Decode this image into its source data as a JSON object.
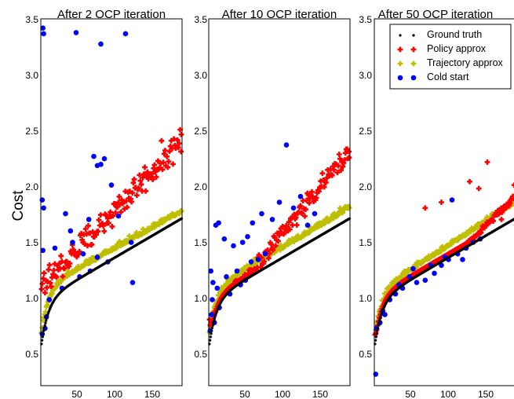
{
  "figure": {
    "ylabel": "Cost",
    "colors": {
      "ground_truth": "#000000",
      "policy": "#ff0000",
      "trajectory": "#bfbf00",
      "cold": "#0000ff"
    }
  },
  "legend": {
    "placement": "top-right of third panel",
    "entries": [
      {
        "key": "ground_truth",
        "label": "Ground truth",
        "marker": "star"
      },
      {
        "key": "policy",
        "label": "Policy approx",
        "marker": "plus"
      },
      {
        "key": "trajectory",
        "label": "Trajectory approx",
        "marker": "plus"
      },
      {
        "key": "cold",
        "label": "Cold start",
        "marker": "circle"
      }
    ]
  },
  "chart_data": [
    {
      "type": "scatter",
      "title": "After 2 OCP iteration",
      "ylabel": "Cost",
      "xlim": [
        0,
        200
      ],
      "ylim": [
        0.3,
        3.5
      ],
      "xticks": [
        "50",
        "100",
        "150"
      ],
      "yticks": [
        "0.5",
        "1.0",
        "1.5",
        "2.0",
        "2.5",
        "3.0",
        "3.5"
      ],
      "series": {
        "policy": {
          "start": 1.15,
          "end": 2.45,
          "spread": 0.18
        },
        "trajectory": {
          "start": 0.85,
          "end": 1.85,
          "spread": 0.05
        },
        "cold_start": {
          "points": [
            [
              3,
              3.42
            ],
            [
              4,
              3.37
            ],
            [
              50,
              3.38
            ],
            [
              85,
              3.28
            ],
            [
              120,
              3.37
            ],
            [
              2,
              1.92
            ],
            [
              4,
              1.85
            ],
            [
              35,
              1.8
            ],
            [
              42,
              1.65
            ],
            [
              68,
              1.75
            ],
            [
              75,
              2.3
            ],
            [
              80,
              2.22
            ],
            [
              85,
              2.23
            ],
            [
              90,
              2.28
            ],
            [
              100,
              2.05
            ],
            [
              110,
              1.78
            ],
            [
              128,
              1.55
            ],
            [
              3,
              1.48
            ],
            [
              20,
              1.5
            ],
            [
              45,
              1.55
            ],
            [
              60,
              1.45
            ],
            [
              80,
              1.42
            ],
            [
              95,
              1.38
            ],
            [
              130,
              1.2
            ],
            [
              8,
              0.9
            ],
            [
              12,
              1.05
            ],
            [
              30,
              1.15
            ],
            [
              55,
              1.25
            ],
            [
              70,
              1.3
            ],
            [
              6,
              0.8
            ],
            [
              2,
              0.75
            ]
          ]
        }
      }
    },
    {
      "type": "scatter",
      "title": "After 10 OCP iteration",
      "xlim": [
        0,
        200
      ],
      "ylim": [
        0.3,
        3.5
      ],
      "xticks": [
        "50",
        "100",
        "150"
      ],
      "yticks": [
        "0.5",
        "1.0",
        "1.5",
        "2.0",
        "2.5",
        "3.0",
        "3.5"
      ],
      "series": {
        "policy": {
          "start": 0.85,
          "end": 2.35,
          "spread": 0.12
        },
        "trajectory": {
          "start": 0.82,
          "end": 1.9,
          "spread": 0.06
        },
        "cold_start": {
          "points": [
            [
              3,
              1.3
            ],
            [
              6,
              1.2
            ],
            [
              10,
              1.7
            ],
            [
              14,
              1.72
            ],
            [
              22,
              1.58
            ],
            [
              35,
              1.52
            ],
            [
              48,
              1.55
            ],
            [
              55,
              1.6
            ],
            [
              62,
              1.72
            ],
            [
              75,
              1.8
            ],
            [
              90,
              1.75
            ],
            [
              100,
              1.9
            ],
            [
              110,
              2.4
            ],
            [
              120,
              1.85
            ],
            [
              130,
              1.95
            ],
            [
              140,
              1.7
            ],
            [
              150,
              1.8
            ],
            [
              5,
              1.05
            ],
            [
              12,
              1.15
            ],
            [
              25,
              1.25
            ],
            [
              40,
              1.3
            ],
            [
              52,
              1.22
            ],
            [
              60,
              1.38
            ],
            [
              70,
              1.4
            ],
            [
              80,
              1.45
            ],
            [
              4,
              0.92
            ],
            [
              8,
              0.85
            ],
            [
              15,
              0.98
            ],
            [
              30,
              1.1
            ],
            [
              45,
              1.18
            ],
            [
              2,
              0.78
            ]
          ]
        }
      }
    },
    {
      "type": "scatter",
      "title": "After 50 OCP iteration",
      "xlim": [
        0,
        200
      ],
      "ylim": [
        0.3,
        3.5
      ],
      "xticks": [
        "50",
        "100",
        "150"
      ],
      "yticks": [
        "0.5",
        "1.0",
        "1.5",
        "2.0",
        "2.5",
        "3.0",
        "3.5"
      ],
      "series": {
        "policy": {
          "start": 0.75,
          "end": 1.95,
          "spread": 0.04
        },
        "trajectory": {
          "start": 0.78,
          "end": 1.98,
          "spread": 0.05
        },
        "cold_start": {
          "points": [
            [
              3,
              0.8
            ],
            [
              8,
              0.85
            ],
            [
              15,
              0.92
            ],
            [
              22,
              1.05
            ],
            [
              30,
              1.1
            ],
            [
              40,
              1.15
            ],
            [
              50,
              1.25
            ],
            [
              60,
              1.2
            ],
            [
              72,
              1.22
            ],
            [
              85,
              1.28
            ],
            [
              95,
              1.35
            ],
            [
              105,
              1.4
            ],
            [
              110,
              1.92
            ],
            [
              118,
              1.45
            ],
            [
              125,
              1.4
            ],
            [
              140,
              1.55
            ],
            [
              150,
              1.58
            ],
            [
              2,
              0.4
            ],
            [
              12,
              0.95
            ],
            [
              35,
              1.18
            ],
            [
              55,
              1.32
            ],
            [
              80,
              1.35
            ],
            [
              100,
              1.42
            ],
            [
              130,
              1.5
            ]
          ]
        }
      }
    }
  ]
}
